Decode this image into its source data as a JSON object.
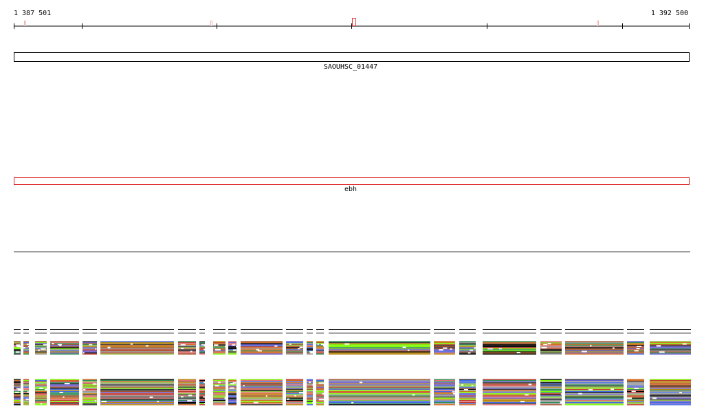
{
  "ruler": {
    "start_label": "1 387 501",
    "end_label": "1 392 500"
  },
  "tracks": [
    {
      "label": "SAOUHSC_01447"
    },
    {
      "label": "ebh"
    }
  ]
}
